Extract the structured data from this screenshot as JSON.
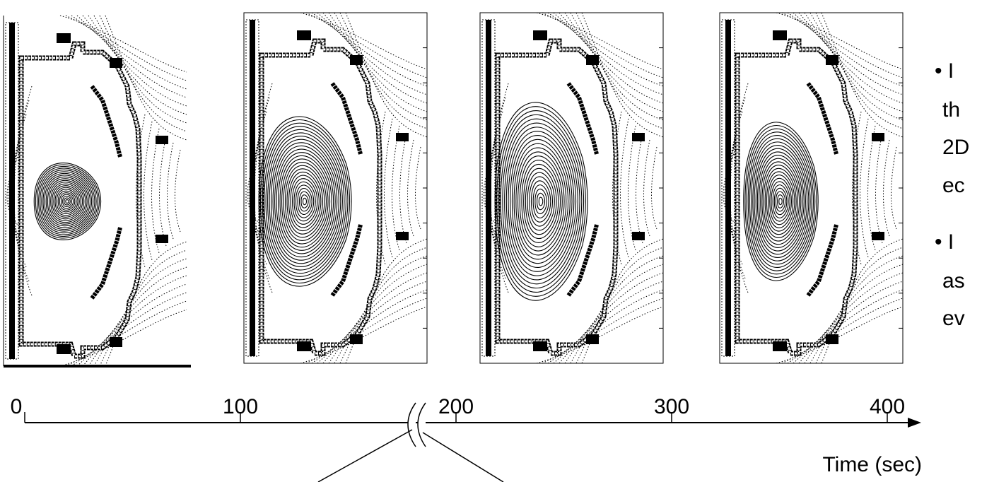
{
  "axis": {
    "ticks": [
      0,
      100,
      200,
      300,
      400
    ],
    "label": "Time (sec)"
  },
  "side_text": {
    "bullet_1": [
      "• I",
      "th",
      "2D",
      "ec"
    ],
    "bullet_2": [
      "• I",
      "as",
      "ev"
    ]
  }
}
